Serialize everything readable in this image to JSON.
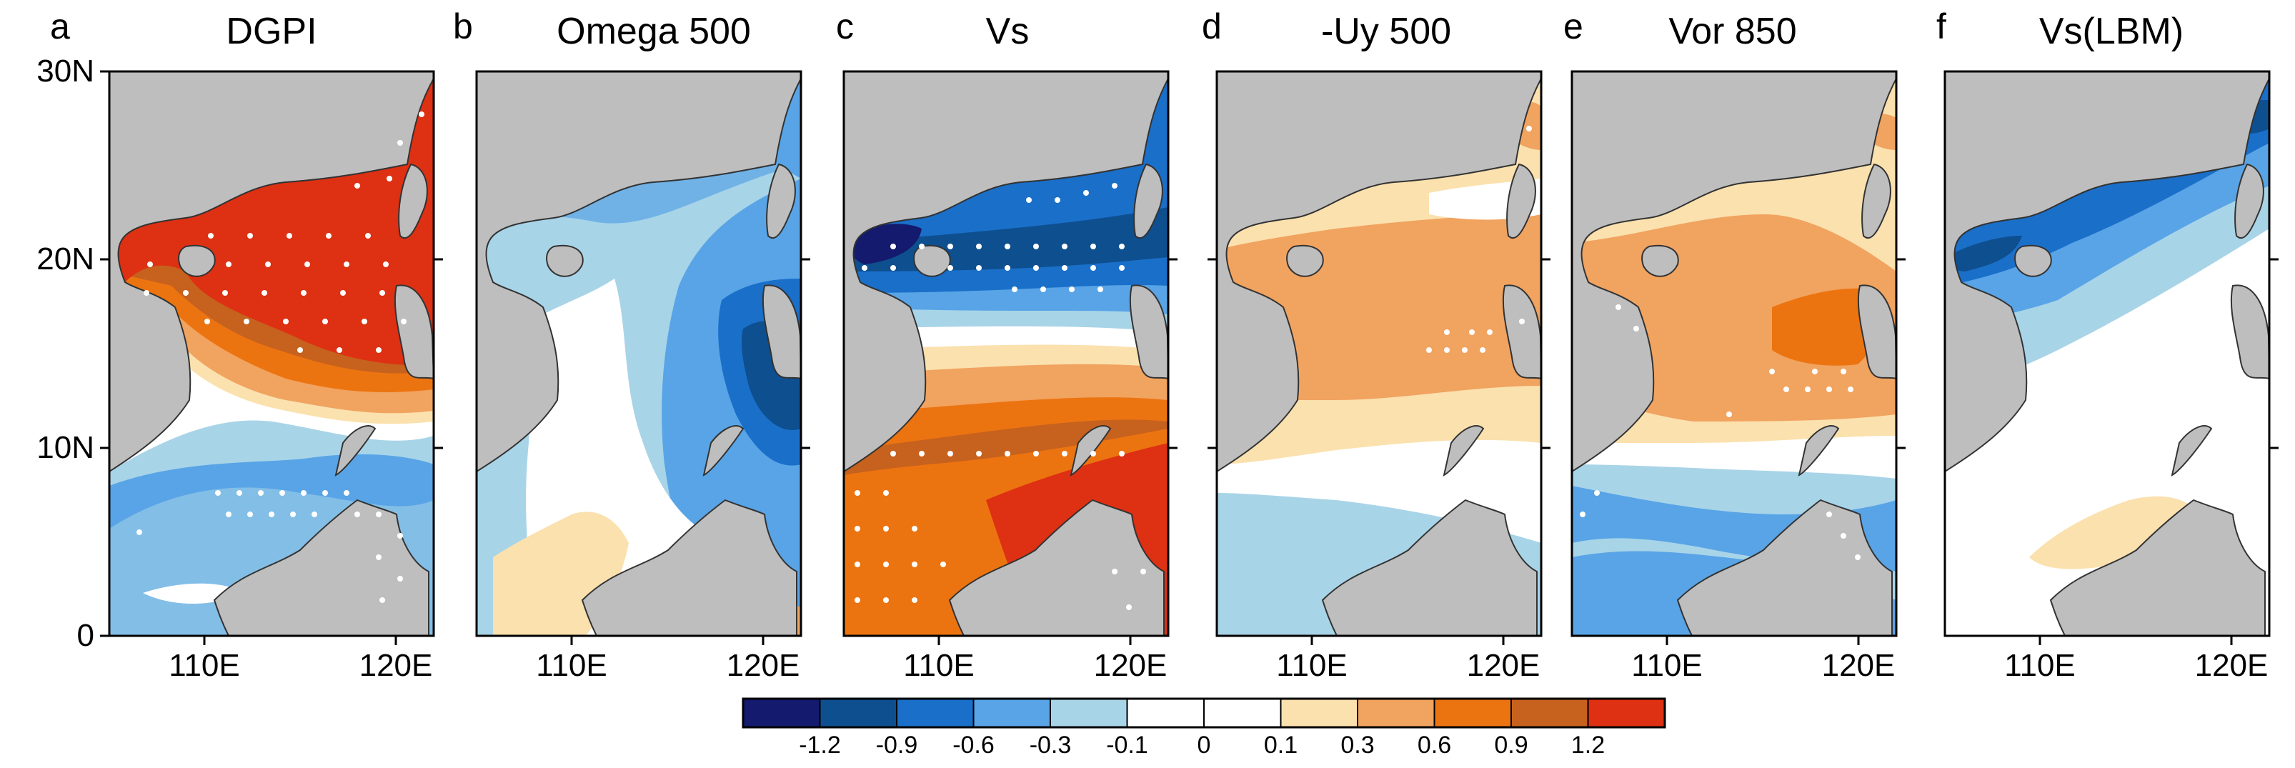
{
  "figure": {
    "panels": [
      {
        "letter": "a",
        "title": "DGPI"
      },
      {
        "letter": "b",
        "title": "Omega 500"
      },
      {
        "letter": "c",
        "title": "Vs"
      },
      {
        "letter": "d",
        "title": "-Uy 500"
      },
      {
        "letter": "e",
        "title": "Vor 850"
      },
      {
        "letter": "f",
        "title": "Vs(LBM)"
      }
    ],
    "lat_labels": [
      "30N",
      "20N",
      "10N",
      "0"
    ],
    "lon_labels": [
      "110E",
      "120E"
    ]
  },
  "colorbar": {
    "labels": [
      "-1.2",
      "-0.9",
      "-0.6",
      "-0.3",
      "-0.1",
      "0",
      "0.1",
      "0.3",
      "0.6",
      "0.9",
      "1.2"
    ],
    "colors": [
      "#141a6e",
      "#0e4f8f",
      "#1a6fc9",
      "#58a4e6",
      "#a8d4e8",
      "#ffffff",
      "#ffffff",
      "#fbe1ae",
      "#f1a360",
      "#ec7410",
      "#c7611e",
      "#de3012"
    ]
  },
  "land_color": "#bebebe"
}
